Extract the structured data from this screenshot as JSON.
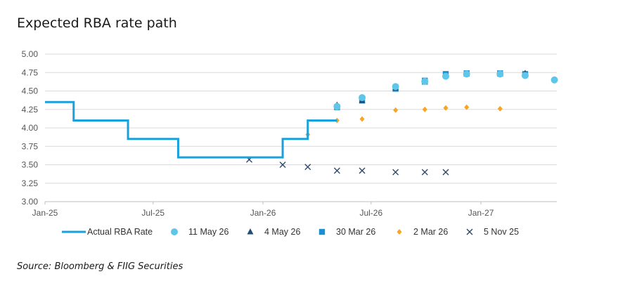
{
  "title": "Expected RBA rate path",
  "source": "Source: Bloomberg & FIIG Securities",
  "colors": {
    "actual": "#1aa0dc",
    "may11": "#5ec6e8",
    "may4": "#1f4e79",
    "mar30": "#1b8fd0",
    "mar2": "#f5a623",
    "nov5": "#2e4a6b",
    "grid": "#d9d9d9",
    "axis": "#bfbfbf"
  },
  "chart_data": {
    "type": "line",
    "title": "Expected RBA rate path",
    "ylim": [
      3.0,
      5.0
    ],
    "y_ticks": [
      "5.00",
      "4.75",
      "4.50",
      "4.25",
      "4.00",
      "3.75",
      "3.50",
      "3.25",
      "3.00"
    ],
    "x_ticks": [
      {
        "label": "Jan-25",
        "date": "2025-01-01"
      },
      {
        "label": "Jul-25",
        "date": "2025-07-01"
      },
      {
        "label": "Jan-26",
        "date": "2026-01-01"
      },
      {
        "label": "Jul-26",
        "date": "2026-07-01"
      },
      {
        "label": "Jan-27",
        "date": "2027-01-01"
      }
    ],
    "xlim": [
      "2025-01-01",
      "2027-05-08"
    ],
    "grid": true,
    "legend_position": "bottom",
    "series": [
      {
        "name": "Actual RBA Rate",
        "style": "step",
        "color_key": "actual",
        "points": [
          [
            "2025-01-01",
            4.35
          ],
          [
            "2025-02-18",
            4.1
          ],
          [
            "2025-05-20",
            3.85
          ],
          [
            "2025-08-12",
            3.6
          ],
          [
            "2026-02-03",
            3.85
          ],
          [
            "2026-03-17",
            4.1
          ],
          [
            "2026-05-05",
            4.1
          ]
        ]
      },
      {
        "name": "11 May 26",
        "marker": "circle",
        "color_key": "may11",
        "points": [
          [
            "2026-05-05",
            4.29
          ],
          [
            "2026-06-16",
            4.41
          ],
          [
            "2026-08-11",
            4.56
          ],
          [
            "2026-09-29",
            4.63
          ],
          [
            "2026-11-03",
            4.7
          ],
          [
            "2026-12-08",
            4.73
          ],
          [
            "2027-02-02",
            4.73
          ],
          [
            "2027-03-16",
            4.71
          ],
          [
            "2027-05-04",
            4.65
          ]
        ]
      },
      {
        "name": "4 May 26",
        "marker": "triangle",
        "color_key": "may4",
        "points": [
          [
            "2026-05-05",
            4.31
          ],
          [
            "2026-06-16",
            4.37
          ],
          [
            "2026-08-11",
            4.54
          ],
          [
            "2026-09-29",
            4.62
          ],
          [
            "2026-11-03",
            4.71
          ],
          [
            "2026-12-08",
            4.73
          ],
          [
            "2027-02-02",
            4.73
          ],
          [
            "2027-03-16",
            4.74
          ]
        ]
      },
      {
        "name": "30 Mar 26",
        "marker": "square",
        "color_key": "mar30",
        "points": [
          [
            "2026-05-05",
            4.28
          ],
          [
            "2026-06-16",
            4.37
          ],
          [
            "2026-08-11",
            4.53
          ],
          [
            "2026-09-29",
            4.64
          ],
          [
            "2026-11-03",
            4.73
          ],
          [
            "2026-12-08",
            4.74
          ],
          [
            "2027-02-02",
            4.74
          ],
          [
            "2027-03-16",
            4.73
          ]
        ]
      },
      {
        "name": "2 Mar 26",
        "marker": "diamond",
        "color_key": "mar2",
        "points": [
          [
            "2026-03-17",
            3.91
          ],
          [
            "2026-05-05",
            4.1
          ],
          [
            "2026-06-16",
            4.12
          ],
          [
            "2026-08-11",
            4.24
          ],
          [
            "2026-09-29",
            4.25
          ],
          [
            "2026-11-03",
            4.27
          ],
          [
            "2026-12-08",
            4.28
          ],
          [
            "2027-02-02",
            4.26
          ]
        ]
      },
      {
        "name": "5 Nov 25",
        "marker": "x",
        "color_key": "nov5",
        "points": [
          [
            "2025-12-09",
            3.57
          ],
          [
            "2026-02-03",
            3.5
          ],
          [
            "2026-03-17",
            3.47
          ],
          [
            "2026-05-05",
            3.42
          ],
          [
            "2026-06-16",
            3.42
          ],
          [
            "2026-08-11",
            3.4
          ],
          [
            "2026-09-29",
            3.4
          ],
          [
            "2026-11-03",
            3.4
          ]
        ]
      }
    ]
  }
}
